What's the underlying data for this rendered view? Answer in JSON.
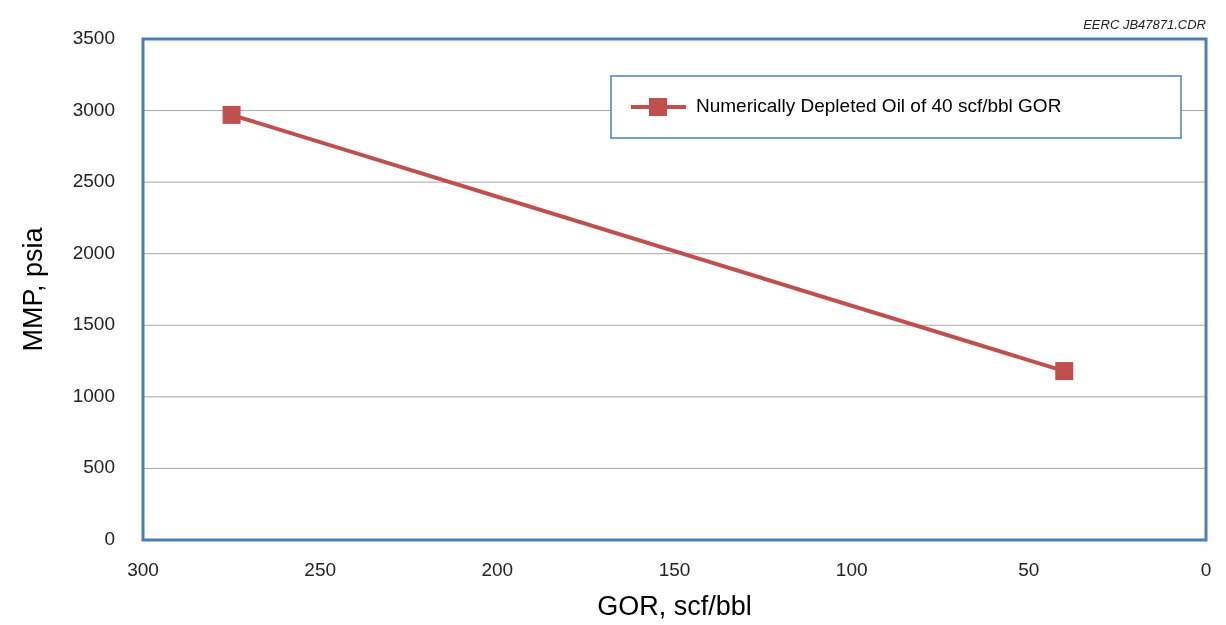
{
  "chart_data": {
    "type": "line",
    "xlabel": "GOR, scf/bbl",
    "ylabel": "MMP, psia",
    "annotations": [
      "EERC JB47871.CDR"
    ],
    "x": [
      275,
      40
    ],
    "series": [
      {
        "name": "Numerically Depleted Oil of 40 scf/bbl GOR",
        "color": "#c0504d",
        "values": [
          2970,
          1180
        ]
      }
    ],
    "xlim": [
      300,
      0
    ],
    "xticks": [
      300,
      250,
      200,
      150,
      100,
      50,
      0
    ],
    "ylim": [
      0,
      3500
    ],
    "yticks": [
      0,
      500,
      1000,
      1500,
      2000,
      2500,
      3000,
      3500
    ],
    "grid": "y",
    "legend": "top right",
    "marker": "square",
    "line_style": "solid"
  }
}
